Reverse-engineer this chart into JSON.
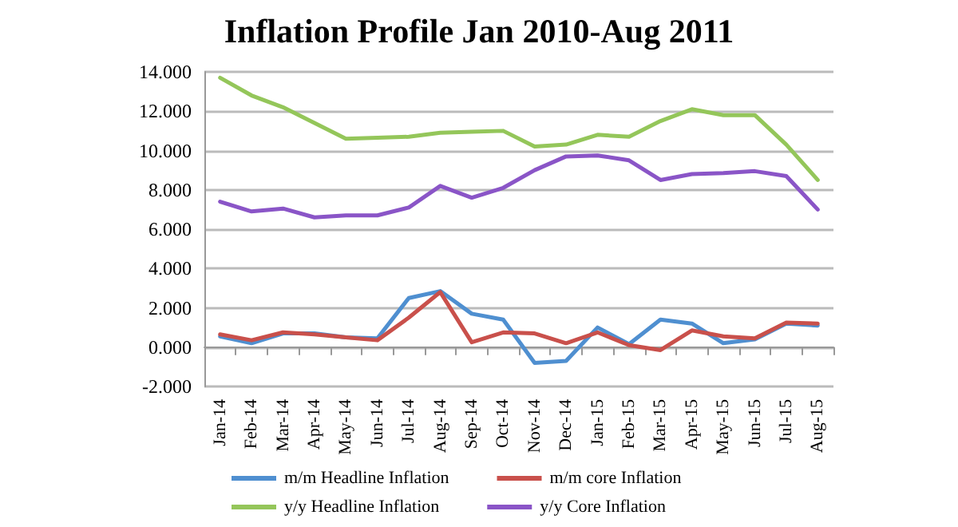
{
  "chart_data": {
    "type": "line",
    "title": "Inflation Profile Jan 2010-Aug 2011",
    "categories": [
      "Jan-14",
      "Feb-14",
      "Mar-14",
      "Apr-14",
      "May-14",
      "Jun-14",
      "Jul-14",
      "Aug-14",
      "Sep-14",
      "Oct-14",
      "Nov-14",
      "Dec-14",
      "Jan-15",
      "Feb-15",
      "Mar-15",
      "Apr-15",
      "May-15",
      "Jun-15",
      "Jul-15",
      "Aug-15"
    ],
    "series": [
      {
        "name": "m/m Headline Inflation",
        "color": "#4f8fd0",
        "values": [
          0.55,
          0.2,
          0.7,
          0.7,
          0.5,
          0.45,
          2.5,
          2.85,
          1.7,
          1.4,
          -0.8,
          -0.7,
          1.0,
          0.15,
          1.4,
          1.2,
          0.2,
          0.4,
          1.2,
          1.1
        ]
      },
      {
        "name": "m/m core Inflation",
        "color": "#c9504b",
        "values": [
          0.65,
          0.35,
          0.75,
          0.65,
          0.5,
          0.35,
          1.5,
          2.8,
          0.25,
          0.75,
          0.7,
          0.2,
          0.75,
          0.1,
          -0.15,
          0.85,
          0.55,
          0.45,
          1.25,
          1.2
        ]
      },
      {
        "name": "y/y Headline Inflation",
        "color": "#94c65a",
        "values": [
          13.7,
          12.8,
          12.2,
          11.4,
          10.6,
          10.65,
          10.7,
          10.9,
          10.95,
          11.0,
          10.2,
          10.3,
          10.8,
          10.7,
          11.5,
          12.1,
          11.8,
          11.8,
          10.3,
          8.5
        ]
      },
      {
        "name": "y/y Core Inflation",
        "color": "#8a55c7",
        "values": [
          7.4,
          6.9,
          7.05,
          6.6,
          6.7,
          6.7,
          7.1,
          8.2,
          7.6,
          8.1,
          9.0,
          9.7,
          9.75,
          9.5,
          8.5,
          8.8,
          8.85,
          8.95,
          8.7,
          7.0
        ]
      }
    ],
    "ylim": [
      -2,
      14
    ],
    "yticks": [
      {
        "value": -2,
        "label": "-2.000"
      },
      {
        "value": 0,
        "label": "0.000"
      },
      {
        "value": 2,
        "label": "2.000"
      },
      {
        "value": 4,
        "label": "4.000"
      },
      {
        "value": 6,
        "label": "6.000"
      },
      {
        "value": 8,
        "label": "8.000"
      },
      {
        "value": 10,
        "label": "10.000"
      },
      {
        "value": 12,
        "label": "12.000"
      },
      {
        "value": 14,
        "label": "14.000"
      }
    ],
    "grid": "y",
    "legend": "bottom",
    "marker": "none",
    "line_style": "solid"
  }
}
